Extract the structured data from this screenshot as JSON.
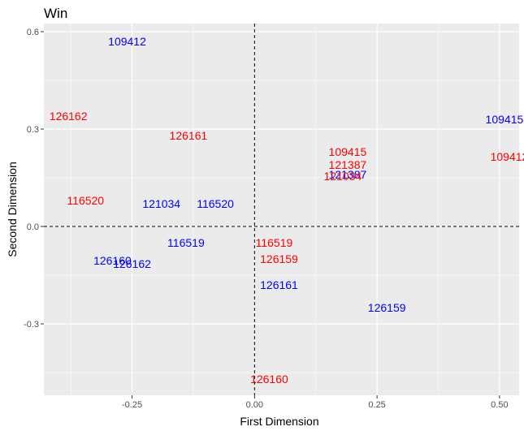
{
  "chart_data": {
    "type": "scatter",
    "title": "Win",
    "xlabel": "First Dimension",
    "ylabel": "Second Dimension",
    "xlim": [
      -0.43,
      0.54
    ],
    "ylim": [
      -0.52,
      0.625
    ],
    "x_ticks": [
      -0.25,
      0.0,
      0.25,
      0.5
    ],
    "x_tick_labels": [
      "-0.25",
      "0.00",
      "0.25",
      "0.50"
    ],
    "y_ticks": [
      -0.3,
      0.0,
      0.3,
      0.6
    ],
    "y_tick_labels": [
      "-0.3",
      "0.0",
      "0.3",
      "0.6"
    ],
    "reference_lines": {
      "x": 0,
      "y": 0,
      "style": "dashed"
    },
    "grid": true,
    "legend": "none",
    "series": [
      {
        "color": "#0000ff",
        "points": [
          {
            "label": "109412",
            "x": -0.26,
            "y": 0.57
          },
          {
            "label": "109415",
            "x": 0.51,
            "y": 0.33
          },
          {
            "label": "121387",
            "x": 0.19,
            "y": 0.16
          },
          {
            "label": "121034",
            "x": -0.19,
            "y": 0.07
          },
          {
            "label": "116520",
            "x": -0.08,
            "y": 0.07
          },
          {
            "label": "116519",
            "x": -0.14,
            "y": -0.05
          },
          {
            "label": "126160",
            "x": -0.29,
            "y": -0.105
          },
          {
            "label": "126162",
            "x": -0.25,
            "y": -0.115
          },
          {
            "label": "126161",
            "x": 0.05,
            "y": -0.18
          },
          {
            "label": "126159",
            "x": 0.27,
            "y": -0.25
          }
        ]
      },
      {
        "color": "#ff0000",
        "points": [
          {
            "label": "126162",
            "x": -0.38,
            "y": 0.34
          },
          {
            "label": "126161",
            "x": -0.135,
            "y": 0.28
          },
          {
            "label": "109415",
            "x": 0.19,
            "y": 0.23
          },
          {
            "label": "109412",
            "x": 0.52,
            "y": 0.215
          },
          {
            "label": "121387",
            "x": 0.19,
            "y": 0.19
          },
          {
            "label": "121034",
            "x": 0.18,
            "y": 0.155
          },
          {
            "label": "116520",
            "x": -0.345,
            "y": 0.08
          },
          {
            "label": "116519",
            "x": 0.04,
            "y": -0.05
          },
          {
            "label": "126159",
            "x": 0.05,
            "y": -0.1
          },
          {
            "label": "126160",
            "x": 0.03,
            "y": -0.47
          }
        ]
      }
    ]
  },
  "colors": {
    "panel_background": "#ebebeb",
    "grid_major": "#ffffff",
    "tick_text": "#4d4d4d"
  }
}
